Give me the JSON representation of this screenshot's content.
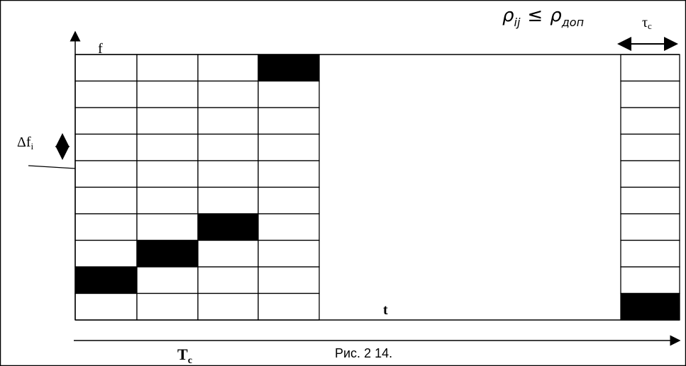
{
  "formula": {
    "lhs": "ρ",
    "lhs_sub": "ij",
    "relation": "≤",
    "rhs": "ρ",
    "rhs_sub": "доп"
  },
  "labels": {
    "tau": "τ",
    "tau_sub": "c",
    "f_axis": "f",
    "delta_f": "Δf",
    "delta_f_sub": "i",
    "t_axis": "t",
    "period": "T",
    "period_sub": "c"
  },
  "caption": "Рис. 2 14."
}
